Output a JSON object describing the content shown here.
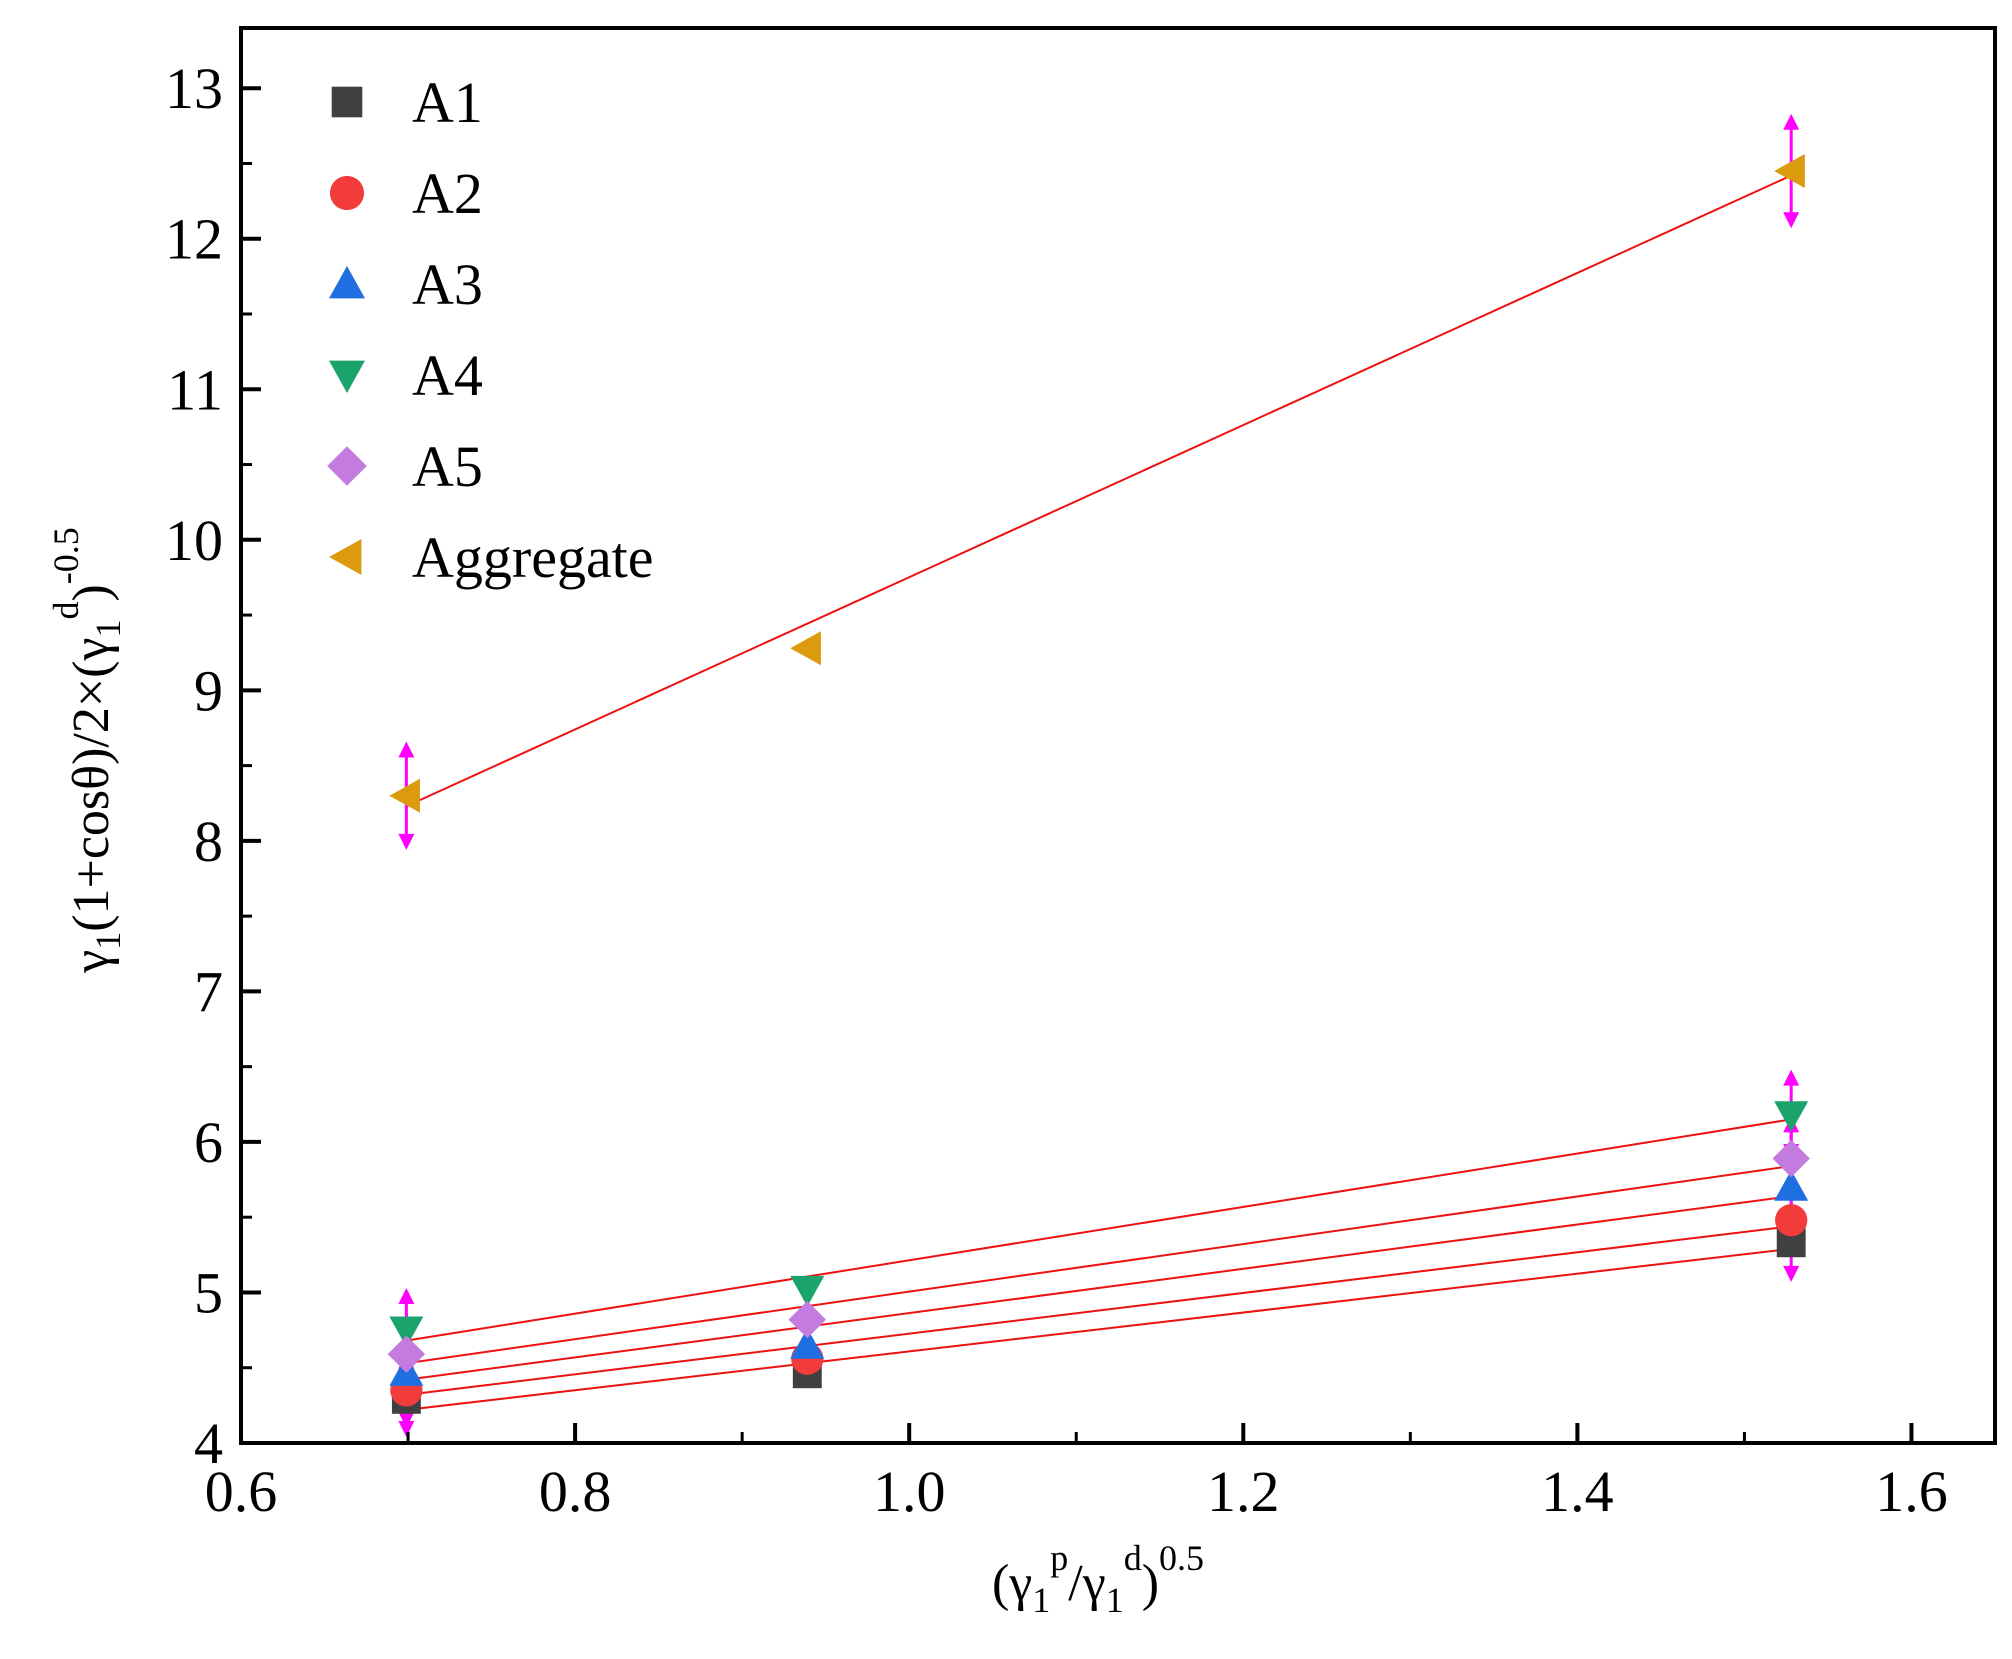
{
  "chart_data": {
    "type": "scatter",
    "title": "",
    "xlabel": {
      "open": "(γ",
      "sub1": "1",
      "sup1": "p",
      "mid": "/γ",
      "sub2": "1",
      "sup2": "d",
      "close": ")",
      "sup3": "0.5"
    },
    "ylabel": {
      "p1": "γ",
      "s1": "1",
      "p2": "(1+cosθ)/2×(γ",
      "s2": "1",
      "sup1": "d",
      "p3": ")",
      "sup2": "-0.5"
    },
    "xlim": [
      0.6,
      1.65
    ],
    "ylim": [
      4,
      13.4
    ],
    "xticks": [
      0.6,
      0.8,
      1.0,
      1.2,
      1.4,
      1.6
    ],
    "xtick_labels": [
      "0.6",
      "0.8",
      "1.0",
      "1.2",
      "1.4",
      "1.6"
    ],
    "yticks": [
      4,
      5,
      6,
      7,
      8,
      9,
      10,
      11,
      12,
      13
    ],
    "ytick_labels": [
      "4",
      "5",
      "6",
      "7",
      "8",
      "9",
      "10",
      "11",
      "12",
      "13"
    ],
    "grid": false,
    "legend_position": "top-left",
    "series": [
      {
        "name": "A1",
        "marker": "square",
        "color": "#404040",
        "x": [
          0.699,
          0.939,
          1.528
        ],
        "y": [
          4.29,
          4.46,
          5.33
        ],
        "error": [
          0.25,
          0,
          0.26
        ],
        "fit": {
          "x": [
            0.699,
            1.528
          ],
          "y": [
            4.22,
            5.29
          ]
        }
      },
      {
        "name": "A2",
        "marker": "circle",
        "color": "#f23b3b",
        "x": [
          0.699,
          0.939,
          1.528
        ],
        "y": [
          4.35,
          4.56,
          5.48
        ],
        "error": [
          0.25,
          0,
          0.26
        ],
        "fit": {
          "x": [
            0.699,
            1.528
          ],
          "y": [
            4.32,
            5.44
          ]
        }
      },
      {
        "name": "A3",
        "marker": "triangle-up",
        "color": "#1f6fe0",
        "x": [
          0.699,
          0.939,
          1.528
        ],
        "y": [
          4.47,
          4.65,
          5.7
        ],
        "error": [
          0.25,
          0,
          0.26
        ],
        "fit": {
          "x": [
            0.699,
            1.528
          ],
          "y": [
            4.42,
            5.64
          ]
        }
      },
      {
        "name": "A4",
        "marker": "triangle-down",
        "color": "#1aa36b",
        "x": [
          0.699,
          0.939,
          1.528
        ],
        "y": [
          4.75,
          5.02,
          6.18
        ],
        "error": [
          0.28,
          0,
          0.3
        ],
        "fit": {
          "x": [
            0.699,
            1.528
          ],
          "y": [
            4.68,
            6.15
          ]
        }
      },
      {
        "name": "A5",
        "marker": "diamond",
        "color": "#c47be0",
        "x": [
          0.699,
          0.939,
          1.528
        ],
        "y": [
          4.59,
          4.82,
          5.89
        ],
        "error": [
          0.27,
          0,
          0.28
        ],
        "fit": {
          "x": [
            0.699,
            1.528
          ],
          "y": [
            4.53,
            5.84
          ]
        }
      },
      {
        "name": "Aggregate",
        "marker": "triangle-left",
        "color": "#dc9a0e",
        "x": [
          0.699,
          0.939,
          1.528
        ],
        "y": [
          8.3,
          9.28,
          12.45
        ],
        "error": [
          0.36,
          0,
          0.38
        ],
        "fit": {
          "x": [
            0.699,
            1.528
          ],
          "y": [
            8.23,
            12.42
          ]
        }
      }
    ],
    "fit_line_color": "#ee1111",
    "error_bar_color": "#ff00ff"
  }
}
